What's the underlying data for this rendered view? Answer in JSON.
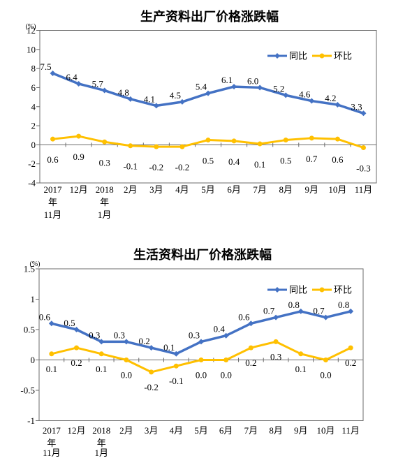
{
  "axis_color": "#6b6b6b",
  "text_color": "#000000",
  "chart_data": [
    {
      "type": "line",
      "title": "生产资料出厂价格涨跌幅",
      "ylabel": "(%)",
      "xlabel": "",
      "grid": false,
      "legend_position": "inside-top-right",
      "categories": [
        "2017年11月",
        "12月",
        "2018年1月",
        "2月",
        "3月",
        "4月",
        "5月",
        "6月",
        "7月",
        "8月",
        "9月",
        "10月",
        "11月"
      ],
      "ylim": [
        -4,
        12
      ],
      "ytick_step": 2,
      "ytick_labels": [
        "12",
        "10",
        "8",
        "6",
        "4",
        "2",
        "0",
        "-2",
        "-4"
      ],
      "series": [
        {
          "name": "同比",
          "color": "#4472C4",
          "marker": "diamond",
          "labels_position": "above",
          "values": [
            7.5,
            6.4,
            5.7,
            4.8,
            4.1,
            4.5,
            5.4,
            6.1,
            6.0,
            5.2,
            4.6,
            4.2,
            3.3
          ]
        },
        {
          "name": "环比",
          "color": "#FFC000",
          "marker": "circle",
          "labels_position": "below",
          "values": [
            0.6,
            0.9,
            0.3,
            -0.1,
            -0.2,
            -0.2,
            0.5,
            0.4,
            0.1,
            0.5,
            0.7,
            0.6,
            -0.3
          ]
        }
      ]
    },
    {
      "type": "line",
      "title": "生活资料出厂价格涨跌幅",
      "ylabel": "(%)",
      "xlabel": "",
      "grid": false,
      "legend_position": "inside-top-right",
      "categories": [
        "2017年11月",
        "12月",
        "2018年1月",
        "2月",
        "3月",
        "4月",
        "5月",
        "6月",
        "7月",
        "8月",
        "9月",
        "10月",
        "11月"
      ],
      "ylim": [
        -1,
        1.5
      ],
      "ytick_step": 0.5,
      "ytick_labels": [
        "1.5",
        "1",
        "0.5",
        "0",
        "-0.5",
        "-1"
      ],
      "series": [
        {
          "name": "同比",
          "color": "#4472C4",
          "marker": "diamond",
          "labels_position": "above",
          "values": [
            0.6,
            0.5,
            0.3,
            0.3,
            0.2,
            0.1,
            0.3,
            0.4,
            0.6,
            0.7,
            0.8,
            0.7,
            0.8
          ]
        },
        {
          "name": "环比",
          "color": "#FFC000",
          "marker": "circle",
          "labels_position": "below",
          "values": [
            0.1,
            0.2,
            0.1,
            0.0,
            -0.2,
            -0.1,
            0.0,
            0.0,
            0.2,
            0.3,
            0.1,
            0.0,
            0.2
          ]
        }
      ]
    }
  ]
}
